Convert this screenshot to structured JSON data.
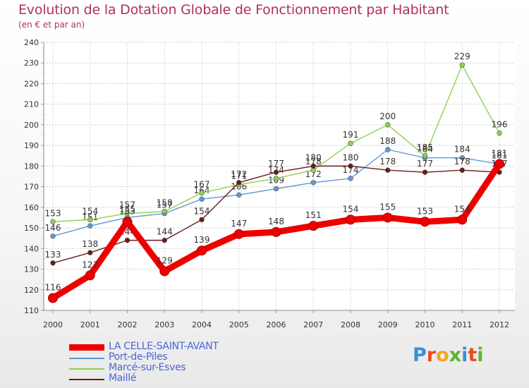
{
  "title": "Evolution de la Dotation Globale de Fonctionnement par Habitant",
  "subtitle": "(en € et par an)",
  "logo": "Proxiti",
  "logo_colors": [
    "#3b8ed8",
    "#e84e1b",
    "#f5a623",
    "#5bb531",
    "#3b8ed8",
    "#e84e1b",
    "#5bb531"
  ],
  "chart_data": {
    "type": "line",
    "title": "Evolution de la Dotation Globale de Fonctionnement par Habitant",
    "ylabel": "(en € et par an)",
    "xlabel": "",
    "ylim": [
      110,
      240
    ],
    "ytick_step": 10,
    "grid": true,
    "legend_position": "bottom-left",
    "x": [
      "2000",
      "2001",
      "2002",
      "2003",
      "2004",
      "2005",
      "2006",
      "2007",
      "2008",
      "2009",
      "2010",
      "2011",
      "2012"
    ],
    "series": [
      {
        "name": "LA CELLE-SAINT-AVANT",
        "color": "#ee0000",
        "emphasis": true,
        "values": [
          116,
          127,
          153,
          129,
          139,
          147,
          148,
          151,
          154,
          155,
          153,
          154,
          181
        ]
      },
      {
        "name": "Port-de-Piles",
        "color": "#5b9bd5",
        "emphasis": false,
        "values": [
          146,
          151,
          155,
          157,
          164,
          166,
          169,
          172,
          174,
          188,
          184,
          184,
          181
        ]
      },
      {
        "name": "Marcé-sur-Esves",
        "color": "#8fd14f",
        "emphasis": false,
        "values": [
          153,
          154,
          157,
          158,
          167,
          171,
          174,
          178,
          191,
          200,
          185,
          229,
          196
        ]
      },
      {
        "name": "Maillé",
        "color": "#6b1a1a",
        "emphasis": false,
        "values": [
          133,
          138,
          144,
          144,
          154,
          172,
          177,
          180,
          180,
          178,
          177,
          178,
          177
        ]
      }
    ]
  }
}
